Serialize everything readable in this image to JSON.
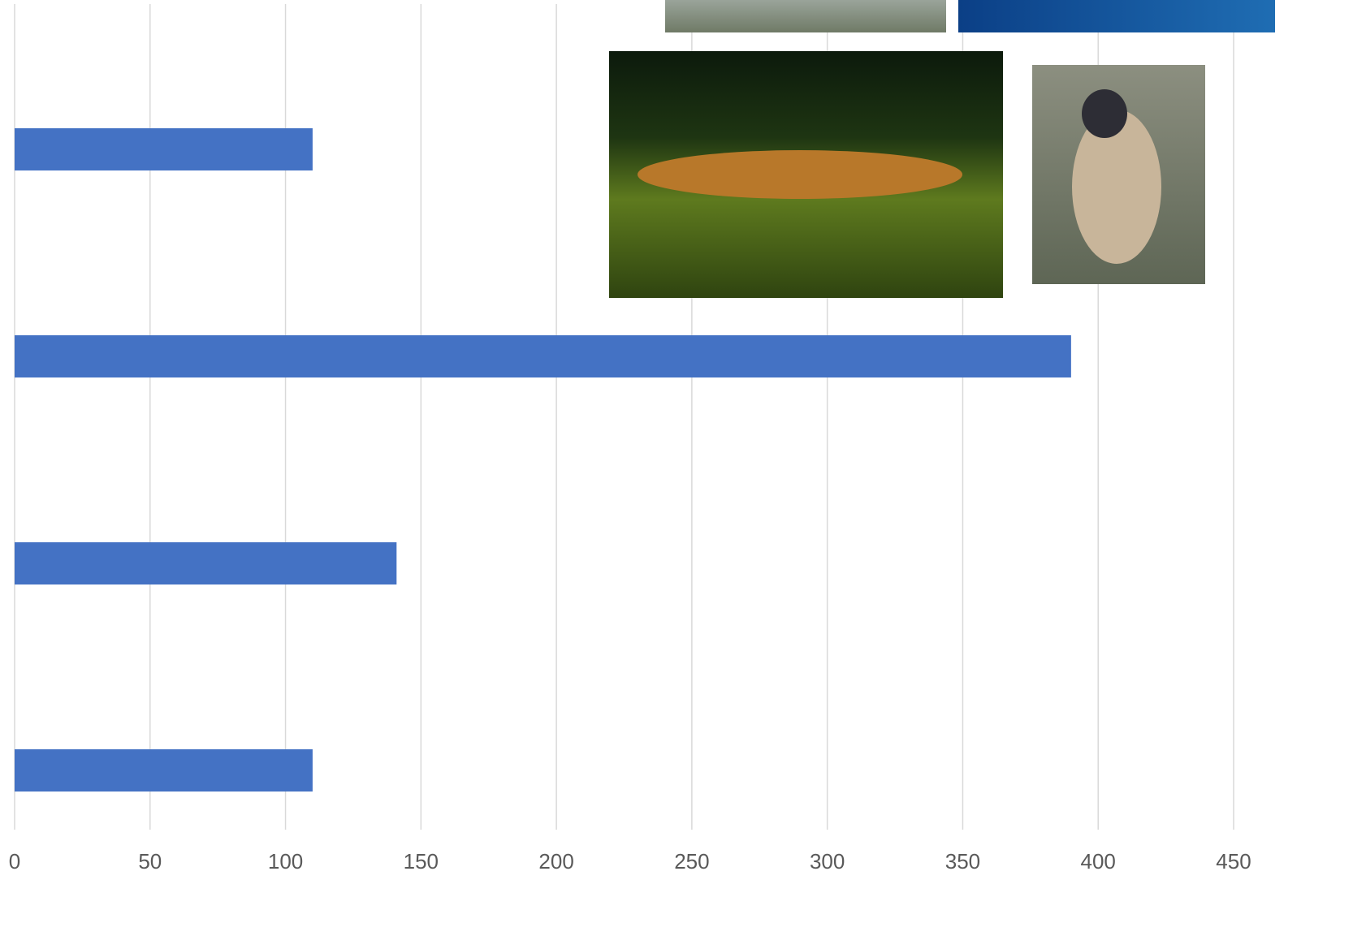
{
  "chart_data": {
    "type": "bar",
    "orientation": "horizontal",
    "categories": [
      null,
      null,
      null,
      null
    ],
    "values": [
      110,
      390,
      141,
      110
    ],
    "color": "#4472c4",
    "xlim": [
      0,
      450
    ],
    "xticks": [
      0,
      50,
      100,
      150,
      200,
      250,
      300,
      350,
      400,
      450
    ],
    "grid": true
  }
}
